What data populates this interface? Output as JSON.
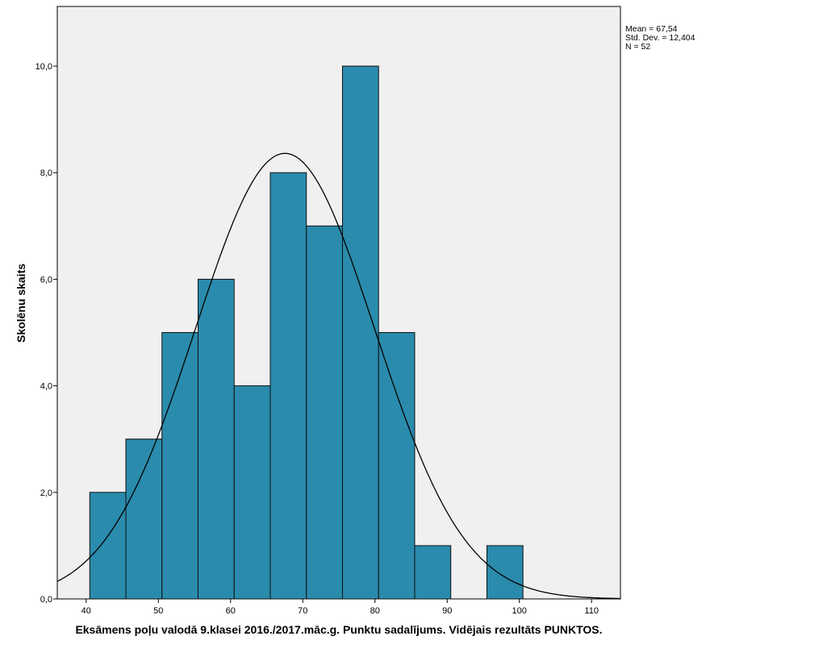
{
  "chart_data": {
    "type": "bar",
    "subtype": "histogram",
    "title": "",
    "xlabel": "Eksāmens poļu valodā 9.klasei 2016./2017.māc.g. Punktu sadalījums. Vidējais rezultāts PUNKTOS.",
    "ylabel": "Skolēnu skaits",
    "xlim": [
      36,
      114
    ],
    "ylim": [
      0,
      11
    ],
    "xticks": [
      40,
      50,
      60,
      70,
      80,
      90,
      100,
      110
    ],
    "xtick_labels": [
      "40",
      "50",
      "60",
      "70",
      "80",
      "90",
      "100",
      "110"
    ],
    "yticks": [
      0,
      2,
      4,
      6,
      8,
      10
    ],
    "ytick_labels": [
      "0,0",
      "2,0",
      "4,0",
      "6,0",
      "8,0",
      "10,0"
    ],
    "bin_width": 5,
    "bins": [
      {
        "from": 40.5,
        "to": 45.5,
        "count": 2
      },
      {
        "from": 45.5,
        "to": 50.5,
        "count": 3
      },
      {
        "from": 50.5,
        "to": 55.5,
        "count": 5
      },
      {
        "from": 55.5,
        "to": 60.5,
        "count": 6
      },
      {
        "from": 60.5,
        "to": 65.5,
        "count": 4
      },
      {
        "from": 65.5,
        "to": 70.5,
        "count": 8
      },
      {
        "from": 70.5,
        "to": 75.5,
        "count": 7
      },
      {
        "from": 75.5,
        "to": 80.5,
        "count": 10
      },
      {
        "from": 80.5,
        "to": 85.5,
        "count": 5
      },
      {
        "from": 85.5,
        "to": 90.5,
        "count": 1
      },
      {
        "from": 90.5,
        "to": 95.5,
        "count": 0
      },
      {
        "from": 95.5,
        "to": 100.5,
        "count": 1
      }
    ],
    "normal_curve": {
      "mean": 67.54,
      "sd": 12.404,
      "n": 52
    },
    "stats": {
      "mean_label": "Mean = 67,54",
      "sd_label": "Std. Dev. = 12,404",
      "n_label": "N = 52"
    },
    "grid": false,
    "legend": "top-right, outside plot",
    "colors": {
      "bar": "#2a8bad",
      "plot_bg": "#f0f0f0",
      "curve": "#000000"
    }
  }
}
